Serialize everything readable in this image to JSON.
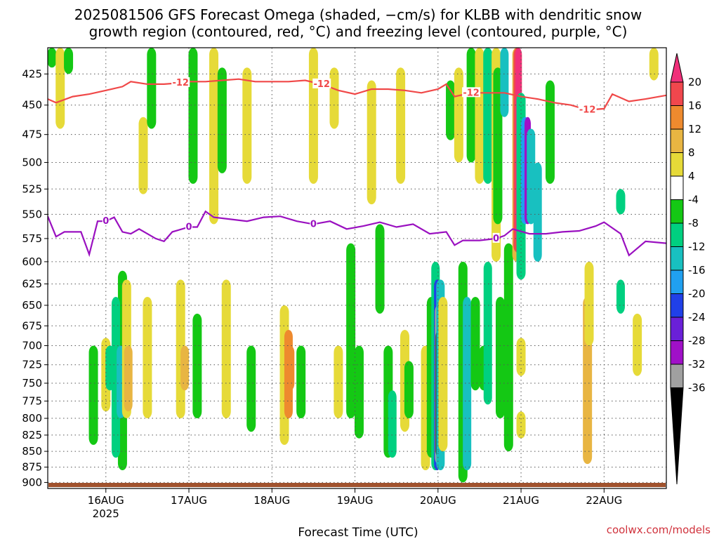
{
  "chart_data": {
    "type": "heatmap",
    "title_line1": "2025081506 GFS Forecast Omega (shaded, −cm/s) for KLBB with dendritic snow",
    "title_line2": "growth region (contoured, red, °C) and freezing level (contoured, purple, °C)",
    "xlabel": "Forecast Time (UTC)",
    "credit": "coolwx.com/models",
    "x_range": [
      15.3,
      22.75
    ],
    "y_range": [
      910,
      405
    ],
    "y_axis_scale": "log-pressure (reversed)",
    "grid": "dotted",
    "y_ticks": [
      "425",
      "450",
      "475",
      "500",
      "525",
      "550",
      "575",
      "600",
      "625",
      "650",
      "675",
      "700",
      "725",
      "750",
      "775",
      "800",
      "825",
      "850",
      "875",
      "900"
    ],
    "x_ticks": [
      {
        "x": 16,
        "label": "16AUG",
        "sub": "2025"
      },
      {
        "x": 17,
        "label": "17AUG",
        "sub": ""
      },
      {
        "x": 18,
        "label": "18AUG",
        "sub": ""
      },
      {
        "x": 19,
        "label": "19AUG",
        "sub": ""
      },
      {
        "x": 20,
        "label": "20AUG",
        "sub": ""
      },
      {
        "x": 21,
        "label": "21AUG",
        "sub": ""
      },
      {
        "x": 22,
        "label": "22AUG",
        "sub": ""
      }
    ],
    "colorbar": {
      "levels": [
        "20",
        "16",
        "12",
        "8",
        "4",
        "-4",
        "-8",
        "-12",
        "-16",
        "-20",
        "-24",
        "-28",
        "-32",
        "-36"
      ],
      "colors": [
        "#f0307a",
        "#f0474d",
        "#ee8a2e",
        "#e8b542",
        "#e6da38",
        "#ffffff",
        "#14c814",
        "#00d080",
        "#18c0c0",
        "#20a0f0",
        "#2040e8",
        "#6a20d8",
        "#a010c8",
        "#a0a0a0",
        "#000000"
      ]
    },
    "contour_labels": {
      "dgz": "-12",
      "freezing": "0"
    },
    "dgz_line_color": "#f04848",
    "freezing_line_color": "#9a10c0",
    "dgz_minus12_level": [
      [
        15.3,
        445
      ],
      [
        15.4,
        448
      ],
      [
        15.6,
        443
      ],
      [
        15.8,
        441
      ],
      [
        16.0,
        438
      ],
      [
        16.2,
        435
      ],
      [
        16.3,
        431
      ],
      [
        16.5,
        433
      ],
      [
        16.7,
        433
      ],
      [
        16.9,
        432
      ],
      [
        17.0,
        431
      ],
      [
        17.2,
        431
      ],
      [
        17.4,
        430
      ],
      [
        17.6,
        429
      ],
      [
        17.8,
        431
      ],
      [
        18.0,
        431
      ],
      [
        18.2,
        431
      ],
      [
        18.4,
        430
      ],
      [
        18.6,
        433
      ],
      [
        18.8,
        438
      ],
      [
        19.0,
        441
      ],
      [
        19.2,
        437
      ],
      [
        19.4,
        437
      ],
      [
        19.6,
        438
      ],
      [
        19.8,
        440
      ],
      [
        20.0,
        437
      ],
      [
        20.1,
        433
      ],
      [
        20.2,
        443
      ],
      [
        20.4,
        440
      ],
      [
        20.6,
        440
      ],
      [
        20.8,
        440
      ],
      [
        21.0,
        443
      ],
      [
        21.2,
        445
      ],
      [
        21.4,
        448
      ],
      [
        21.6,
        450
      ],
      [
        21.8,
        454
      ],
      [
        22.0,
        453
      ],
      [
        22.1,
        441
      ],
      [
        22.3,
        447
      ],
      [
        22.5,
        445
      ],
      [
        22.75,
        442
      ]
    ],
    "freezing_0_level": [
      [
        15.3,
        552
      ],
      [
        15.4,
        573
      ],
      [
        15.5,
        568
      ],
      [
        15.7,
        568
      ],
      [
        15.8,
        592
      ],
      [
        15.9,
        557
      ],
      [
        16.0,
        557
      ],
      [
        16.1,
        553
      ],
      [
        16.2,
        568
      ],
      [
        16.3,
        570
      ],
      [
        16.4,
        565
      ],
      [
        16.5,
        570
      ],
      [
        16.6,
        575
      ],
      [
        16.7,
        578
      ],
      [
        16.8,
        568
      ],
      [
        17.0,
        563
      ],
      [
        17.1,
        563
      ],
      [
        17.2,
        547
      ],
      [
        17.3,
        553
      ],
      [
        17.5,
        555
      ],
      [
        17.7,
        557
      ],
      [
        17.9,
        553
      ],
      [
        18.1,
        552
      ],
      [
        18.3,
        557
      ],
      [
        18.5,
        560
      ],
      [
        18.7,
        557
      ],
      [
        18.9,
        565
      ],
      [
        19.1,
        562
      ],
      [
        19.3,
        558
      ],
      [
        19.5,
        563
      ],
      [
        19.7,
        560
      ],
      [
        19.9,
        570
      ],
      [
        20.1,
        568
      ],
      [
        20.2,
        582
      ],
      [
        20.3,
        577
      ],
      [
        20.5,
        577
      ],
      [
        20.7,
        575
      ],
      [
        20.8,
        572
      ],
      [
        20.9,
        565
      ],
      [
        21.1,
        570
      ],
      [
        21.3,
        570
      ],
      [
        21.5,
        568
      ],
      [
        21.7,
        567
      ],
      [
        21.9,
        562
      ],
      [
        22.0,
        558
      ],
      [
        22.2,
        570
      ],
      [
        22.3,
        593
      ],
      [
        22.5,
        578
      ],
      [
        22.75,
        580
      ]
    ],
    "omega_cells": [
      {
        "t": 15.35,
        "p0": 405,
        "p1": 420,
        "v": -6
      },
      {
        "t": 15.45,
        "p0": 405,
        "p1": 470,
        "v": 6
      },
      {
        "t": 15.55,
        "p0": 405,
        "p1": 425,
        "v": -6
      },
      {
        "t": 16.0,
        "p0": 690,
        "p1": 790,
        "v": 6
      },
      {
        "t": 16.05,
        "p0": 700,
        "p1": 760,
        "v": -8
      },
      {
        "t": 15.85,
        "p0": 700,
        "p1": 840,
        "v": -6
      },
      {
        "t": 16.2,
        "p0": 610,
        "p1": 880,
        "v": -6
      },
      {
        "t": 16.12,
        "p0": 640,
        "p1": 860,
        "v": -10
      },
      {
        "t": 16.18,
        "p0": 700,
        "p1": 800,
        "v": -12
      },
      {
        "t": 16.25,
        "p0": 620,
        "p1": 800,
        "v": 6
      },
      {
        "t": 16.27,
        "p0": 700,
        "p1": 790,
        "v": 10
      },
      {
        "t": 16.45,
        "p0": 460,
        "p1": 530,
        "v": 6
      },
      {
        "t": 16.5,
        "p0": 640,
        "p1": 800,
        "v": 6
      },
      {
        "t": 16.55,
        "p0": 405,
        "p1": 470,
        "v": -6
      },
      {
        "t": 16.9,
        "p0": 620,
        "p1": 800,
        "v": 6
      },
      {
        "t": 16.95,
        "p0": 700,
        "p1": 760,
        "v": 10
      },
      {
        "t": 17.05,
        "p0": 405,
        "p1": 520,
        "v": -6
      },
      {
        "t": 17.1,
        "p0": 660,
        "p1": 800,
        "v": -6
      },
      {
        "t": 17.3,
        "p0": 405,
        "p1": 560,
        "v": 6
      },
      {
        "t": 17.4,
        "p0": 420,
        "p1": 510,
        "v": -6
      },
      {
        "t": 17.45,
        "p0": 620,
        "p1": 800,
        "v": 6
      },
      {
        "t": 17.7,
        "p0": 420,
        "p1": 520,
        "v": 6
      },
      {
        "t": 17.75,
        "p0": 700,
        "p1": 820,
        "v": -6
      },
      {
        "t": 18.15,
        "p0": 650,
        "p1": 840,
        "v": 6
      },
      {
        "t": 18.2,
        "p0": 680,
        "p1": 800,
        "v": 12
      },
      {
        "t": 18.22,
        "p0": 700,
        "p1": 760,
        "v": 14
      },
      {
        "t": 18.35,
        "p0": 700,
        "p1": 800,
        "v": -6
      },
      {
        "t": 18.5,
        "p0": 405,
        "p1": 520,
        "v": 6
      },
      {
        "t": 18.75,
        "p0": 420,
        "p1": 470,
        "v": 6
      },
      {
        "t": 18.8,
        "p0": 700,
        "p1": 800,
        "v": 6
      },
      {
        "t": 18.95,
        "p0": 580,
        "p1": 800,
        "v": -6
      },
      {
        "t": 19.05,
        "p0": 700,
        "p1": 830,
        "v": -6
      },
      {
        "t": 19.2,
        "p0": 430,
        "p1": 540,
        "v": 6
      },
      {
        "t": 19.3,
        "p0": 560,
        "p1": 660,
        "v": -6
      },
      {
        "t": 19.4,
        "p0": 700,
        "p1": 860,
        "v": -6
      },
      {
        "t": 19.45,
        "p0": 760,
        "p1": 860,
        "v": -10
      },
      {
        "t": 19.55,
        "p0": 420,
        "p1": 520,
        "v": 6
      },
      {
        "t": 19.6,
        "p0": 680,
        "p1": 820,
        "v": 6
      },
      {
        "t": 19.65,
        "p0": 720,
        "p1": 800,
        "v": -6
      },
      {
        "t": 19.85,
        "p0": 700,
        "p1": 880,
        "v": 6
      },
      {
        "t": 19.92,
        "p0": 640,
        "p1": 860,
        "v": -6
      },
      {
        "t": 19.97,
        "p0": 600,
        "p1": 880,
        "v": -10
      },
      {
        "t": 19.99,
        "p0": 620,
        "p1": 880,
        "v": -20
      },
      {
        "t": 20.0,
        "p0": 650,
        "p1": 870,
        "v": -32
      },
      {
        "t": 20.01,
        "p0": 680,
        "p1": 860,
        "v": -40
      },
      {
        "t": 20.03,
        "p0": 620,
        "p1": 880,
        "v": -12
      },
      {
        "t": 20.06,
        "p0": 640,
        "p1": 850,
        "v": 6
      },
      {
        "t": 20.15,
        "p0": 430,
        "p1": 480,
        "v": -6
      },
      {
        "t": 20.25,
        "p0": 420,
        "p1": 500,
        "v": 6
      },
      {
        "t": 20.3,
        "p0": 600,
        "p1": 900,
        "v": -6
      },
      {
        "t": 20.35,
        "p0": 640,
        "p1": 880,
        "v": -14
      },
      {
        "t": 20.4,
        "p0": 405,
        "p1": 500,
        "v": -6
      },
      {
        "t": 20.45,
        "p0": 640,
        "p1": 760,
        "v": -6
      },
      {
        "t": 20.5,
        "p0": 405,
        "p1": 520,
        "v": 6
      },
      {
        "t": 20.55,
        "p0": 700,
        "p1": 760,
        "v": -6
      },
      {
        "t": 20.6,
        "p0": 405,
        "p1": 520,
        "v": -8
      },
      {
        "t": 20.6,
        "p0": 600,
        "p1": 780,
        "v": -10
      },
      {
        "t": 20.7,
        "p0": 405,
        "p1": 600,
        "v": 6
      },
      {
        "t": 20.72,
        "p0": 420,
        "p1": 560,
        "v": -6
      },
      {
        "t": 20.75,
        "p0": 640,
        "p1": 800,
        "v": -6
      },
      {
        "t": 20.8,
        "p0": 405,
        "p1": 460,
        "v": -14
      },
      {
        "t": 20.85,
        "p0": 580,
        "p1": 850,
        "v": -6
      },
      {
        "t": 20.95,
        "p0": 405,
        "p1": 600,
        "v": 8
      },
      {
        "t": 20.96,
        "p0": 405,
        "p1": 590,
        "v": 16
      },
      {
        "t": 20.97,
        "p0": 405,
        "p1": 580,
        "v": 24
      },
      {
        "t": 21.0,
        "p0": 440,
        "p1": 620,
        "v": -8
      },
      {
        "t": 21.05,
        "p0": 460,
        "p1": 560,
        "v": -18
      },
      {
        "t": 21.08,
        "p0": 460,
        "p1": 560,
        "v": -30
      },
      {
        "t": 21.12,
        "p0": 470,
        "p1": 560,
        "v": -14
      },
      {
        "t": 21.2,
        "p0": 500,
        "p1": 600,
        "v": -12
      },
      {
        "t": 21.0,
        "p0": 690,
        "p1": 740,
        "v": 6
      },
      {
        "t": 21.0,
        "p0": 790,
        "p1": 830,
        "v": 6
      },
      {
        "t": 21.35,
        "p0": 430,
        "p1": 520,
        "v": -6
      },
      {
        "t": 21.8,
        "p0": 640,
        "p1": 870,
        "v": 8
      },
      {
        "t": 21.82,
        "p0": 600,
        "p1": 700,
        "v": 6
      },
      {
        "t": 22.2,
        "p0": 525,
        "p1": 550,
        "v": -8
      },
      {
        "t": 22.2,
        "p0": 620,
        "p1": 660,
        "v": -10
      },
      {
        "t": 22.4,
        "p0": 660,
        "p1": 740,
        "v": 6
      },
      {
        "t": 22.6,
        "p0": 405,
        "p1": 430,
        "v": 6
      }
    ]
  }
}
